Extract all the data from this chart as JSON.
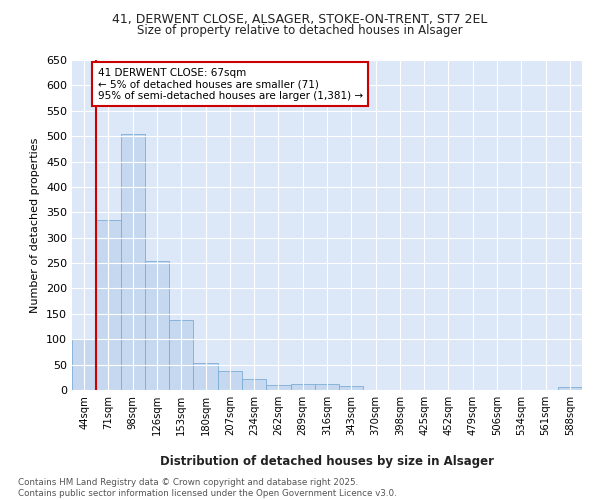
{
  "title1": "41, DERWENT CLOSE, ALSAGER, STOKE-ON-TRENT, ST7 2EL",
  "title2": "Size of property relative to detached houses in Alsager",
  "xlabel": "Distribution of detached houses by size in Alsager",
  "ylabel": "Number of detached properties",
  "categories": [
    "44sqm",
    "71sqm",
    "98sqm",
    "126sqm",
    "153sqm",
    "180sqm",
    "207sqm",
    "234sqm",
    "262sqm",
    "289sqm",
    "316sqm",
    "343sqm",
    "370sqm",
    "398sqm",
    "425sqm",
    "452sqm",
    "479sqm",
    "506sqm",
    "534sqm",
    "561sqm",
    "588sqm"
  ],
  "values": [
    100,
    335,
    505,
    255,
    138,
    53,
    37,
    21,
    9,
    11,
    11,
    7,
    0,
    0,
    0,
    0,
    0,
    0,
    0,
    0,
    5
  ],
  "bar_color": "#c5d8f0",
  "bar_edge_color": "#7aadd4",
  "vline_color": "#cc0000",
  "vline_x": 0.5,
  "annotation_text": "41 DERWENT CLOSE: 67sqm\n← 5% of detached houses are smaller (71)\n95% of semi-detached houses are larger (1,381) →",
  "annotation_box_color": "#ffffff",
  "annotation_box_edge": "#cc0000",
  "ylim": [
    0,
    650
  ],
  "yticks": [
    0,
    50,
    100,
    150,
    200,
    250,
    300,
    350,
    400,
    450,
    500,
    550,
    600,
    650
  ],
  "footer_text": "Contains HM Land Registry data © Crown copyright and database right 2025.\nContains public sector information licensed under the Open Government Licence v3.0.",
  "fig_bg_color": "#ffffff",
  "plot_bg_color": "#dce8f8"
}
